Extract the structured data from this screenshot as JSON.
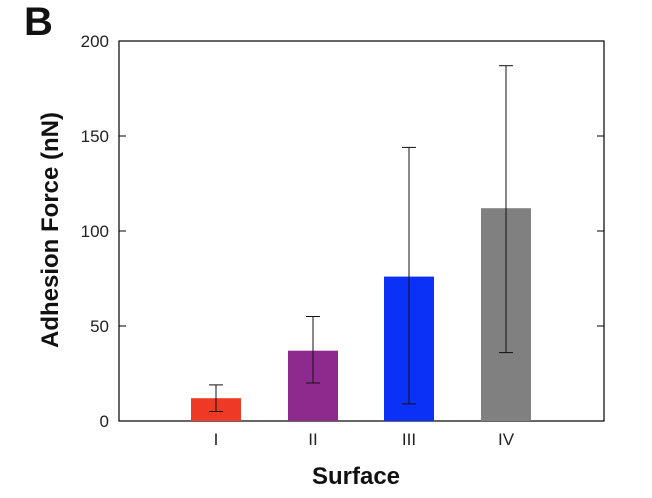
{
  "panel_label": "B",
  "chart_data": {
    "type": "bar",
    "xlabel": "Surface",
    "ylabel": "Adhesion Force (nN)",
    "categories": [
      "I",
      "II",
      "III",
      "IV"
    ],
    "values": [
      12,
      37,
      76,
      112
    ],
    "error_low": [
      5,
      20,
      9,
      36
    ],
    "error_high": [
      19,
      55,
      144,
      187
    ],
    "colors": [
      "#ee3a24",
      "#8e2a8e",
      "#0a31f5",
      "#808080"
    ],
    "ylim": [
      0,
      200
    ],
    "yticks": [
      0,
      50,
      100,
      150,
      200
    ],
    "grid": false,
    "legend": "none"
  }
}
